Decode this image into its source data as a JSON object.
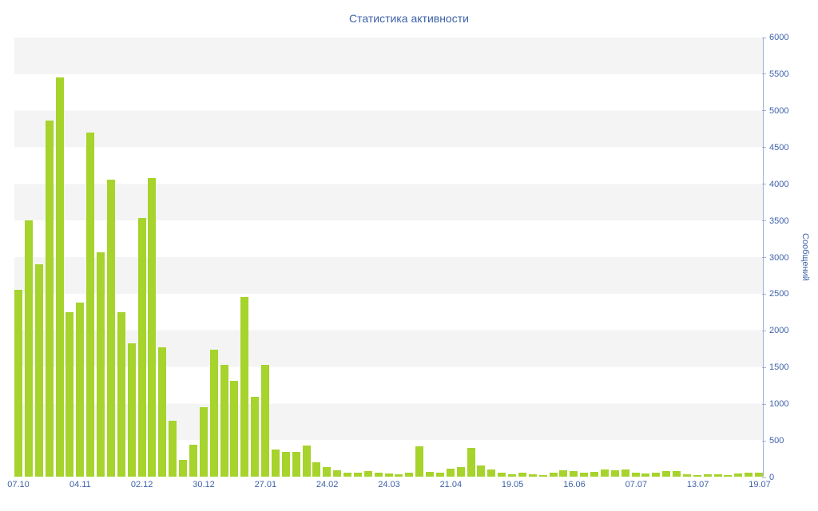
{
  "title": "Статистика активности",
  "y_axis": {
    "label": "Сообщений",
    "step": 500,
    "max": 6000,
    "ticks": [
      6000,
      5500,
      5000,
      4500,
      4000,
      3500,
      3000,
      2500,
      2000,
      1500,
      1000,
      500,
      0
    ]
  },
  "x_axis": {
    "ticks": [
      "07.10",
      "04.11",
      "02.12",
      "30.12",
      "27.01",
      "24.02",
      "24.03",
      "21.04",
      "19.05",
      "16.06",
      "07.07",
      "13.07",
      "19.07"
    ]
  },
  "chart_data": {
    "type": "bar",
    "title": "Статистика активности",
    "xlabel": "",
    "ylabel": "Сообщений",
    "ylim": [
      0,
      6000
    ],
    "y_step": 500,
    "grid": "horizontal-stripes",
    "legend": "none",
    "categories": [
      "07.10",
      "04.11",
      "02.12",
      "30.12",
      "27.01",
      "24.02",
      "24.03",
      "21.04",
      "19.05",
      "16.06",
      "07.07",
      "13.07",
      "19.07"
    ],
    "values": [
      2550,
      3500,
      2900,
      4870,
      5460,
      2250,
      2380,
      4700,
      3070,
      4060,
      2250,
      1820,
      3530,
      4080,
      1770,
      760,
      230,
      440,
      950,
      1730,
      1530,
      1310,
      2450,
      1090,
      1530,
      370,
      340,
      340,
      430,
      200,
      130,
      90,
      60,
      50,
      80,
      60,
      40,
      30,
      60,
      420,
      70,
      60,
      110,
      130,
      390,
      150,
      100,
      60,
      30,
      50,
      30,
      20,
      60,
      90,
      80,
      60,
      70,
      100,
      90,
      100,
      60,
      40,
      60,
      80,
      80,
      30,
      20,
      30,
      30,
      20,
      40,
      50,
      60
    ],
    "colors": {
      "bar": "#a6d32c",
      "stripe": "#f4f4f4",
      "background": "#ffffff",
      "text": "#3e62a8",
      "axis_line": "#9db1d4"
    }
  }
}
